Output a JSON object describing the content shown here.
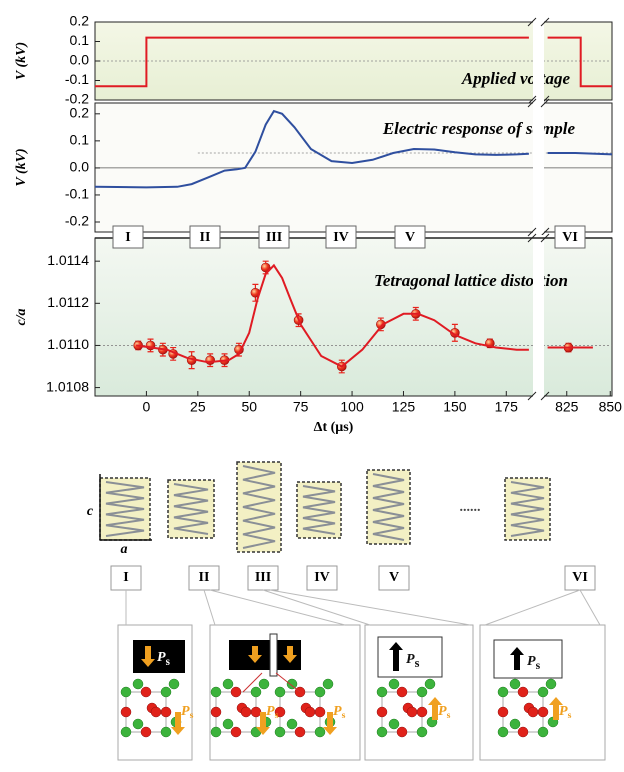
{
  "chart_data": [
    {
      "type": "line",
      "ylabel": "V (kV)",
      "annotation": "Applied voltage",
      "ylim": [
        -0.2,
        0.2
      ],
      "yticks": [
        0.2,
        0.1,
        {
          "value": 0,
          "label": "0.0"
        },
        -0.1,
        -0.2
      ],
      "xlim": [
        -25,
        851
      ],
      "xbreak": [
        187.5,
        812.5
      ],
      "reference_line": 0,
      "series": [
        {
          "color": "#e01b23",
          "x": [
            -25,
            0,
            0,
            186,
            null,
            814,
            833,
            833,
            851
          ],
          "values": [
            -0.13,
            -0.13,
            0.12,
            0.12,
            null,
            0.12,
            0.12,
            -0.13,
            -0.13
          ]
        }
      ]
    },
    {
      "type": "line",
      "ylabel": "V (kV)",
      "annotation": "Electric response of sample",
      "ylim": [
        -0.237,
        0.24
      ],
      "yticks": [
        0.2,
        0.1,
        {
          "value": 0,
          "label": "0.0"
        },
        -0.1,
        -0.2
      ],
      "xlim": [
        -25,
        851
      ],
      "xbreak": [
        187.5,
        812.5
      ],
      "reference_line": 0.055,
      "series": [
        {
          "color": "#2f4f9f",
          "x": [
            -25,
            0,
            15,
            22,
            30,
            38,
            44,
            48,
            53,
            58,
            62,
            66,
            72,
            80,
            90,
            100,
            110,
            120,
            130,
            140,
            150,
            160,
            170,
            180,
            186,
            null,
            814,
            830,
            851
          ],
          "values": [
            -0.07,
            -0.072,
            -0.07,
            -0.06,
            -0.035,
            -0.01,
            -0.005,
            0,
            0.06,
            0.16,
            0.21,
            0.2,
            0.15,
            0.07,
            0.025,
            0.018,
            0.03,
            0.055,
            0.07,
            0.068,
            0.058,
            0.05,
            0.048,
            0.05,
            0.052,
            null,
            0.055,
            0.055,
            0.05
          ]
        }
      ]
    },
    {
      "type": "scatter",
      "ylabel": "c/a",
      "xlabel": "Δt (μs)",
      "annotation": "Tetragonal lattice distortion",
      "stages": [
        "I",
        "II",
        "III",
        "IV",
        "V",
        "VI"
      ],
      "ylim": [
        1.01076,
        1.01151
      ],
      "yticks": [
        1.0114,
        1.0112,
        {
          "value": 1.011,
          "label": "1.0110"
        },
        1.0108
      ],
      "xlim": [
        -25,
        851
      ],
      "xbreak": [
        187.5,
        812.5
      ],
      "reference_line": 1.011,
      "xticks": [
        0,
        25,
        50,
        75,
        100,
        125,
        150,
        175,
        825,
        850
      ],
      "series": [
        {
          "type": "scatter",
          "color": "#e8231c",
          "x": [
            -4,
            2,
            8,
            13,
            22,
            31,
            38,
            45,
            53,
            58,
            74,
            95,
            114,
            131,
            150,
            167,
            826
          ],
          "values": [
            1.011,
            1.011,
            1.01098,
            1.01096,
            1.01093,
            1.01093,
            1.01093,
            1.01098,
            1.01125,
            1.01137,
            1.01112,
            1.0109,
            1.0111,
            1.01115,
            1.01106,
            1.01101,
            1.01099
          ],
          "errors": [
            2e-05,
            3e-05,
            3e-05,
            3e-05,
            4e-05,
            3e-05,
            3e-05,
            3e-05,
            4e-05,
            3e-05,
            3e-05,
            3e-05,
            3e-05,
            3e-05,
            4e-05,
            2e-05,
            2e-05
          ]
        },
        {
          "type": "line",
          "color": "#e01b23",
          "x": [
            -5,
            10,
            20,
            30,
            40,
            45,
            50,
            54,
            58,
            62,
            66,
            70,
            75,
            85,
            95,
            105,
            115,
            125,
            132,
            140,
            150,
            160,
            170,
            180,
            186,
            null,
            814,
            826,
            840
          ],
          "values": [
            1.011,
            1.01098,
            1.01094,
            1.01092,
            1.01093,
            1.01096,
            1.01106,
            1.01122,
            1.01134,
            1.01138,
            1.01132,
            1.01122,
            1.0111,
            1.01095,
            1.0109,
            1.01098,
            1.0111,
            1.01115,
            1.01115,
            1.01112,
            1.01105,
            1.01101,
            1.01099,
            1.01098,
            1.01098,
            null,
            1.01099,
            1.01099,
            1.01099
          ]
        }
      ]
    }
  ],
  "schematic": {
    "c_label": "c",
    "a_label": "a",
    "ellipsis": "......",
    "stages": [
      "I",
      "II",
      "III",
      "IV",
      "V",
      "VI"
    ],
    "polarization": {
      "symbol": "P",
      "subscript": "s"
    }
  }
}
